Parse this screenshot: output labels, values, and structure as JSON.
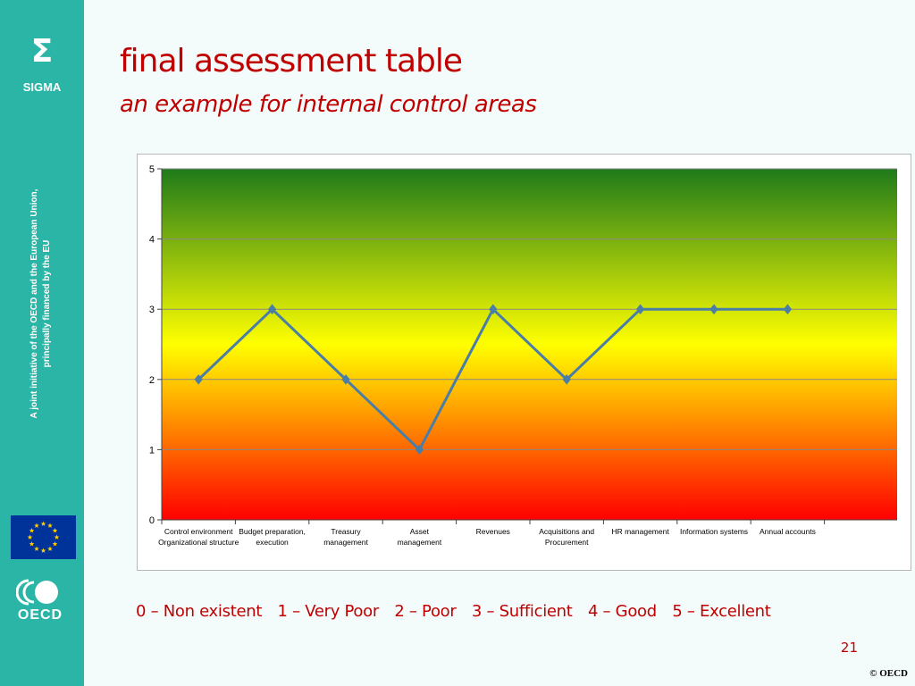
{
  "sidebar": {
    "sigma_symbol": "Σ",
    "sigma_label": "SIGMA",
    "note_line1": "A joint  initiative of the OECD and the European Union,",
    "note_line2": "principally financed by the EU",
    "oecd_label": "OECD"
  },
  "slide": {
    "title": "final assessment table",
    "subtitle": "an example for internal control areas",
    "page_number": "21",
    "copyright": "© OECD"
  },
  "scale_legend": [
    "0 – Non existent",
    "1 – Very Poor",
    "2 – Poor",
    "3 – Sufficient",
    "4 – Good",
    "5 – Excellent"
  ],
  "colors": {
    "sidebar": "#2bb5a6",
    "accent_red": "#c00000",
    "line": "#4a7ea6",
    "gradient_top": "#1f7a1a",
    "gradient_mid": "#ffff00",
    "gradient_bottom": "#ff0000"
  },
  "chart_data": {
    "type": "line",
    "categories": [
      [
        "Control environment",
        "Organizational structure"
      ],
      [
        "Budget preparation,",
        "execution"
      ],
      [
        "Treasury",
        "management"
      ],
      [
        "Asset",
        "management"
      ],
      [
        "Revenues"
      ],
      [
        "Acquisitions  and",
        "Procurement"
      ],
      [
        "HR management"
      ],
      [
        "Information systems"
      ],
      [
        "Annual accounts"
      ]
    ],
    "values": [
      2,
      3,
      2,
      1,
      3,
      2,
      3,
      3,
      3
    ],
    "ylim": [
      0,
      5
    ],
    "yticks": [
      0,
      1,
      2,
      3,
      4,
      5
    ],
    "grid": true,
    "background": "vertical gradient green-yellow-red",
    "marker": "diamond"
  }
}
